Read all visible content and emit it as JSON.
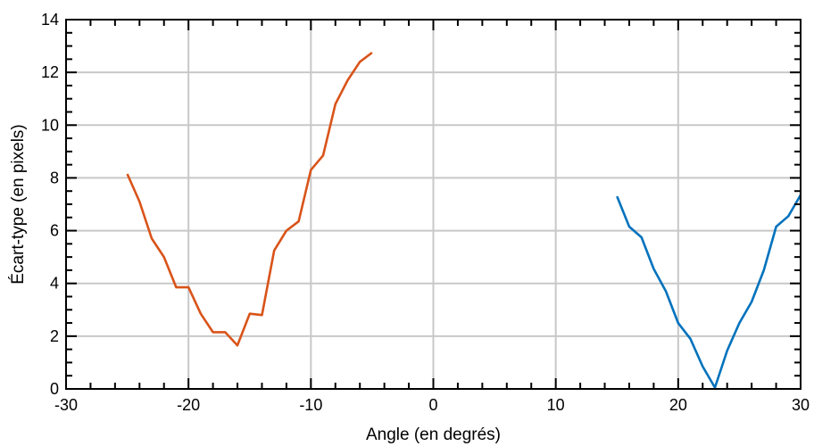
{
  "chart_data": {
    "type": "line",
    "xlabel": "Angle (en degrés)",
    "ylabel": "Écart-type (en pixels)",
    "xlim": [
      -30,
      30
    ],
    "ylim": [
      0,
      14
    ],
    "xticks": [
      -30,
      -20,
      -10,
      0,
      10,
      20,
      30
    ],
    "yticks": [
      0,
      2,
      4,
      6,
      8,
      10,
      12,
      14
    ],
    "xtick_labels": [
      "-30",
      "-20",
      "-10",
      "0",
      "10",
      "20",
      "30"
    ],
    "ytick_labels": [
      "0",
      "2",
      "4",
      "6",
      "8",
      "10",
      "12",
      "14"
    ],
    "grid": true,
    "series": [
      {
        "color": "#d95319",
        "x": [
          -25,
          -24,
          -23,
          -22,
          -21,
          -20,
          -19,
          -18,
          -17,
          -16,
          -15,
          -14,
          -13,
          -12,
          -11,
          -10,
          -9,
          -8,
          -7,
          -6,
          -5
        ],
        "y": [
          8.15,
          7.1,
          5.7,
          5.0,
          3.85,
          3.85,
          2.85,
          2.15,
          2.15,
          1.65,
          2.85,
          2.8,
          5.25,
          6.0,
          6.35,
          8.3,
          8.85,
          10.8,
          11.7,
          12.4,
          12.75
        ]
      },
      {
        "color": "#0072bd",
        "x": [
          15,
          16,
          17,
          18,
          19,
          20,
          21,
          22,
          23,
          24,
          25,
          26,
          27,
          28,
          29,
          30
        ],
        "y": [
          7.3,
          6.15,
          5.75,
          4.55,
          3.7,
          2.5,
          1.9,
          0.85,
          0.05,
          1.45,
          2.5,
          3.3,
          4.5,
          6.15,
          6.55,
          7.35
        ]
      }
    ]
  }
}
